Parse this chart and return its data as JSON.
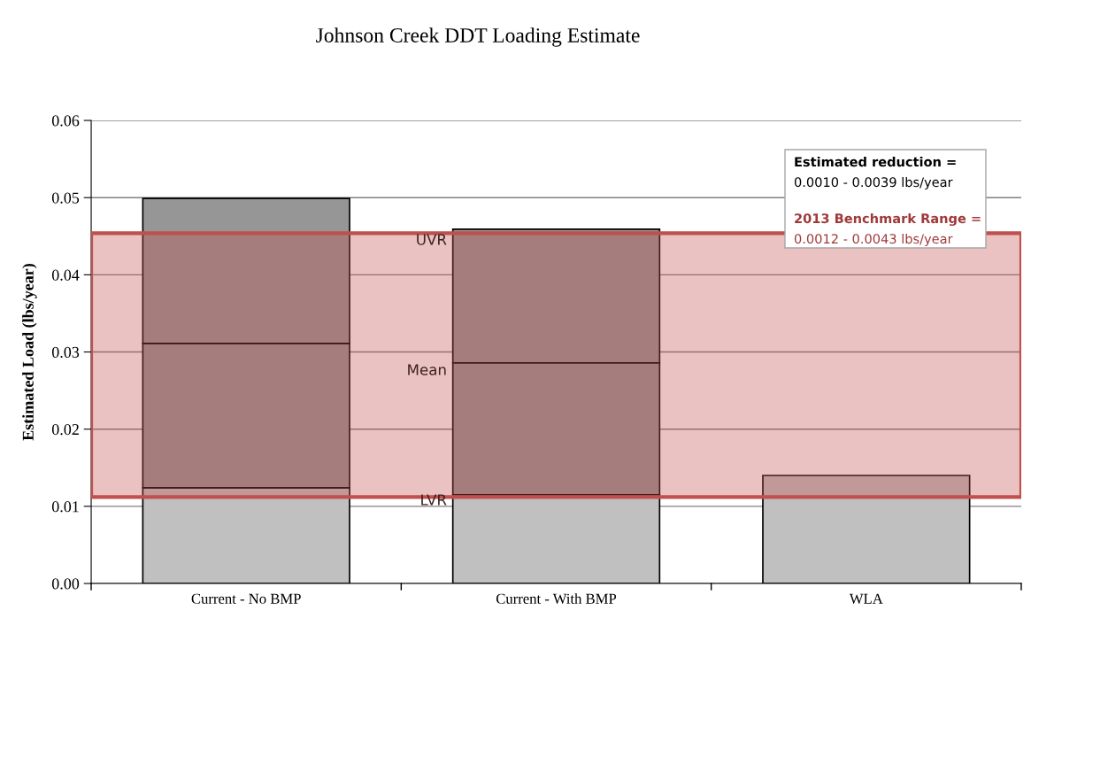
{
  "chart_data": {
    "type": "bar",
    "title": "Johnson Creek DDT Loading Estimate",
    "ylabel": "Estimated Load (lbs/year)",
    "categories": [
      "Current - No BMP",
      "Current - With BMP",
      "WLA"
    ],
    "stacked": true,
    "series": [
      {
        "color": "#c0c0c0",
        "values": [
          0.0124,
          0.0115,
          0.014
        ]
      },
      {
        "color": "#969696",
        "values": [
          0.0187,
          0.0171,
          null
        ]
      },
      {
        "color": "#969696",
        "values": [
          0.0188,
          0.0173,
          null
        ]
      }
    ],
    "ylim": [
      0,
      0.06
    ],
    "yticks": [
      {
        "value": 0,
        "label": "0.00"
      },
      {
        "value": 0.01,
        "label": "0.01"
      },
      {
        "value": 0.02,
        "label": "0.02"
      },
      {
        "value": 0.03,
        "label": "0.03"
      },
      {
        "value": 0.04,
        "label": "0.04"
      },
      {
        "value": 0.05,
        "label": "0.05"
      },
      {
        "value": 0.06,
        "label": "0.06"
      }
    ],
    "grid": "y",
    "legend": false,
    "bands": [
      {
        "axis": "y",
        "from": 0.0112,
        "to": 0.0454,
        "color": "#c0504d"
      }
    ],
    "annotations": [
      "UVR",
      "Mean",
      "LVR",
      "Estimated reduction =",
      "0.0010 - 0.0039 lbs/year",
      "2013 Benchmark Range =",
      "0.0012 - 0.0043 lbs/year"
    ]
  }
}
